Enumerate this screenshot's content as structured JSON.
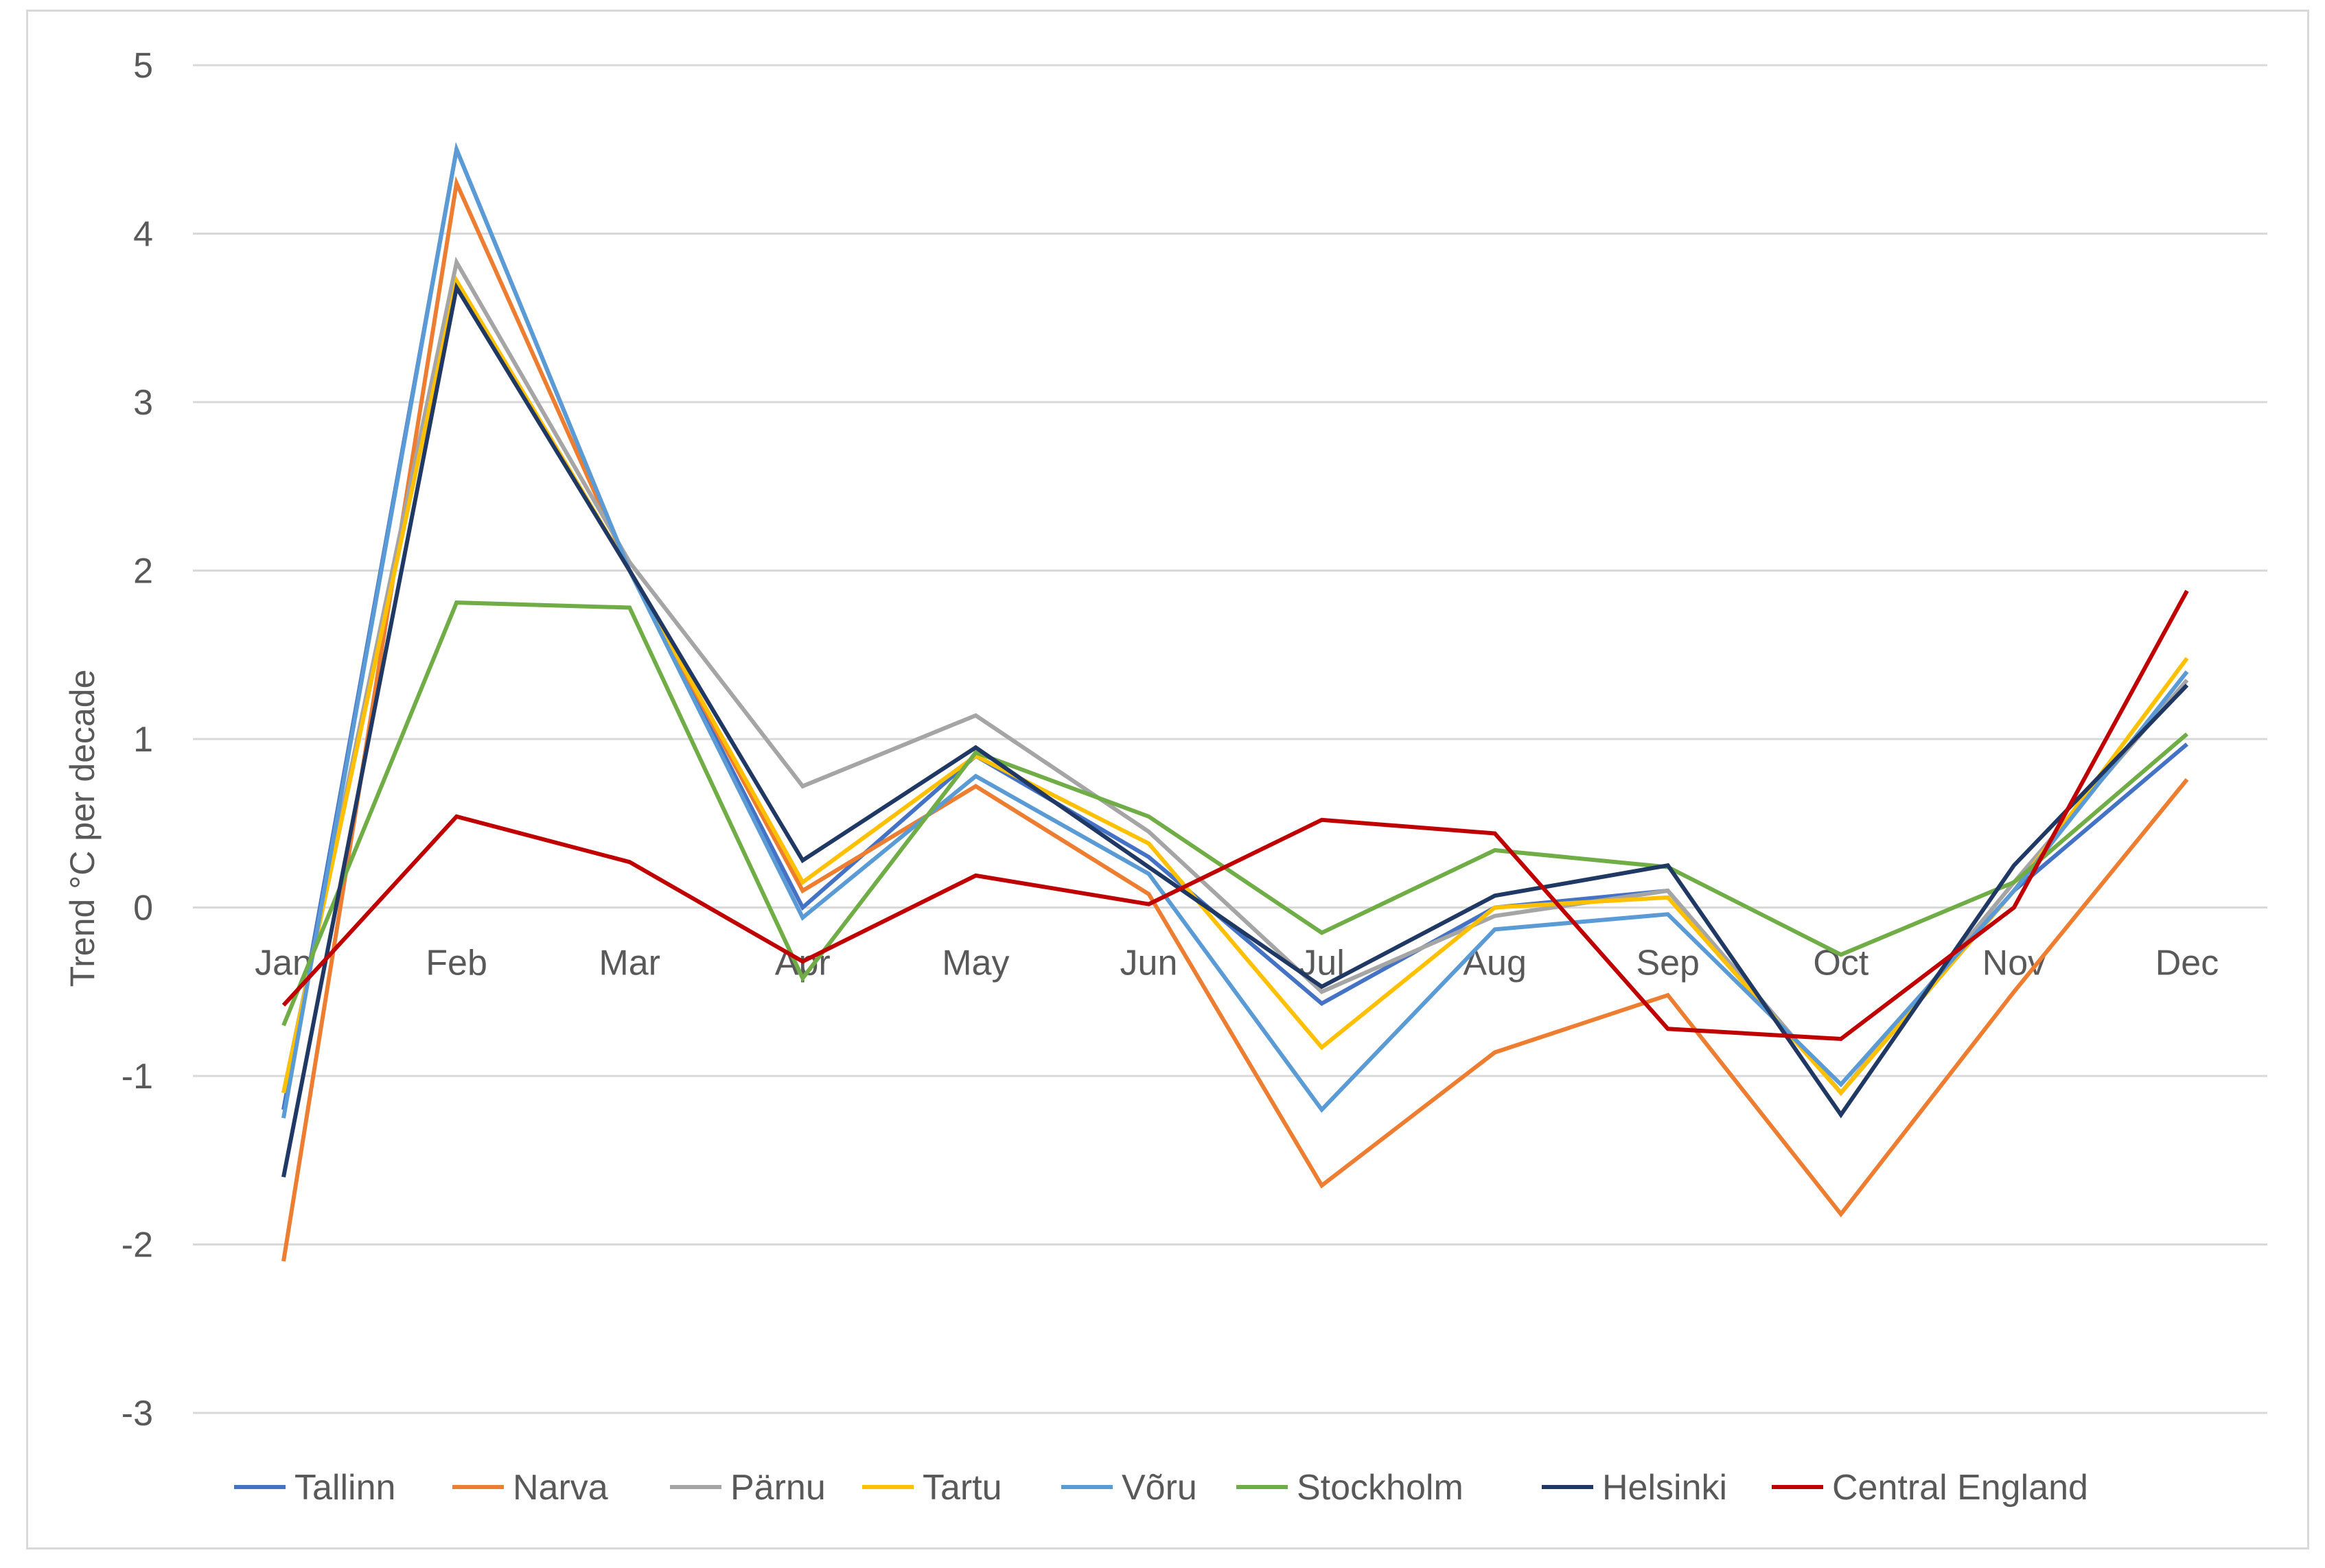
{
  "chart_data": {
    "type": "line",
    "title": "",
    "xlabel": "",
    "ylabel": "Trend °C per decade",
    "ylim": [
      -3,
      5
    ],
    "yticks": [
      -3,
      -2,
      -1,
      0,
      1,
      2,
      3,
      4,
      5
    ],
    "grid": true,
    "legend": "bottom",
    "categories": [
      "Jan",
      "Feb",
      "Mar",
      "Apr",
      "May",
      "Jun",
      "Jul",
      "Aug",
      "Sep",
      "Oct",
      "Nov",
      "Dec"
    ],
    "series": [
      {
        "name": "Tallinn",
        "color": "#4472c4",
        "values": [
          -1.2,
          4.5,
          2.0,
          0.0,
          0.9,
          0.3,
          -0.57,
          0.0,
          0.1,
          -1.1,
          0.1,
          0.97
        ]
      },
      {
        "name": "Narva",
        "color": "#ed7d31",
        "values": [
          -2.1,
          4.3,
          2.0,
          0.1,
          0.72,
          0.08,
          -1.65,
          -0.86,
          -0.52,
          -1.82,
          -0.5,
          0.76
        ]
      },
      {
        "name": "Pärnu",
        "color": "#a5a5a5",
        "values": [
          -1.1,
          3.83,
          2.05,
          0.72,
          1.14,
          0.45,
          -0.5,
          -0.05,
          0.1,
          -1.1,
          0.15,
          1.35
        ]
      },
      {
        "name": "Tartu",
        "color": "#ffc000",
        "values": [
          -1.1,
          3.72,
          2.0,
          0.15,
          0.9,
          0.38,
          -0.83,
          0.0,
          0.06,
          -1.1,
          0.1,
          1.48
        ]
      },
      {
        "name": "Võru",
        "color": "#5b9bd5",
        "values": [
          -1.25,
          4.5,
          2.0,
          -0.06,
          0.78,
          0.2,
          -1.2,
          -0.13,
          -0.04,
          -1.05,
          0.1,
          1.4
        ]
      },
      {
        "name": "Stockholm",
        "color": "#70ad47",
        "values": [
          -0.7,
          1.81,
          1.78,
          -0.42,
          0.92,
          0.54,
          -0.15,
          0.34,
          0.24,
          -0.28,
          0.15,
          1.03
        ]
      },
      {
        "name": "Helsinki",
        "color": "#203864",
        "values": [
          -1.6,
          3.68,
          2.0,
          0.28,
          0.95,
          0.24,
          -0.47,
          0.07,
          0.25,
          -1.23,
          0.25,
          1.32
        ]
      },
      {
        "name": "Central England",
        "color": "#c00000",
        "values": [
          -0.58,
          0.54,
          0.27,
          -0.32,
          0.19,
          0.02,
          0.52,
          0.44,
          -0.72,
          -0.78,
          0.0,
          1.88
        ]
      }
    ]
  }
}
